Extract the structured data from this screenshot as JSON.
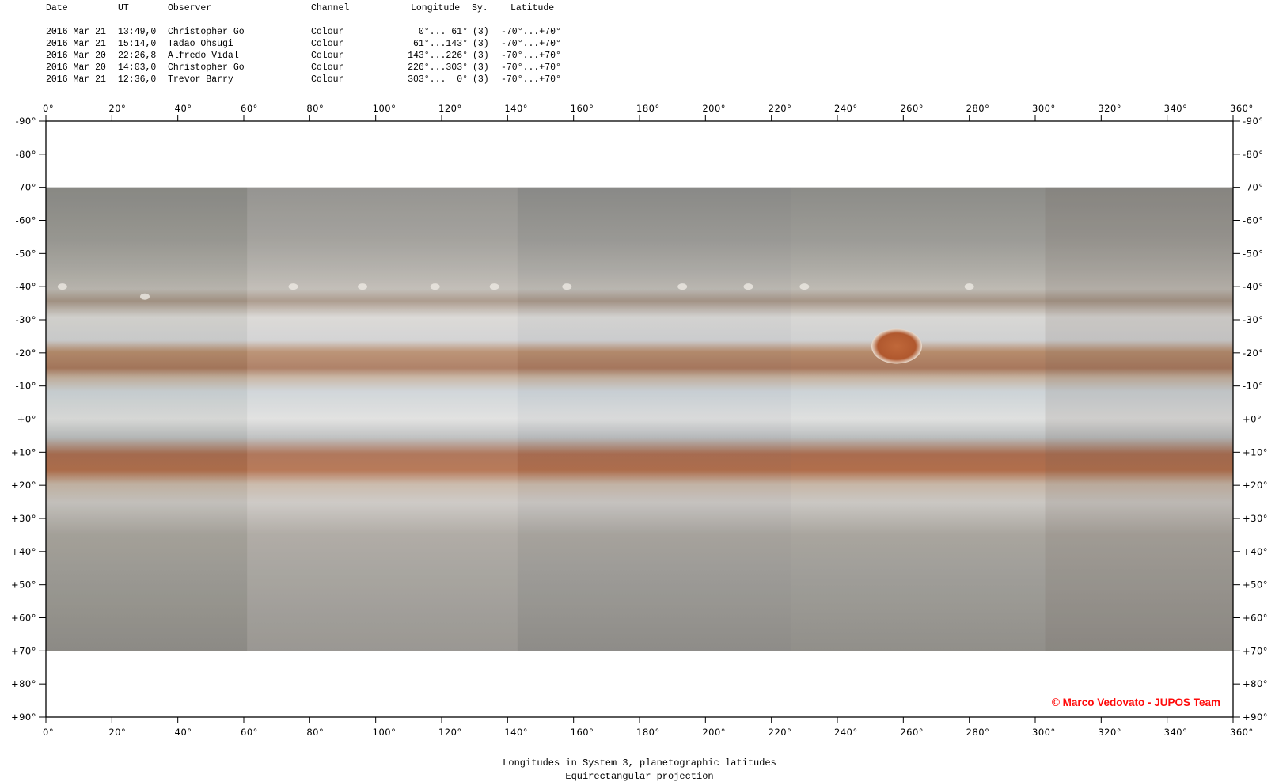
{
  "header": {
    "columns": {
      "date": "Date",
      "ut": "UT",
      "observer": "Observer",
      "channel": "Channel",
      "longitude": "Longitude",
      "system": "Sy.",
      "latitude": "Latitude"
    },
    "rows": [
      {
        "date": "2016 Mar 21",
        "ut": "13:49,0",
        "observer": "Christopher Go",
        "channel": "Colour",
        "longitude": "0°... 61°",
        "system": "(3)",
        "latitude": "-70°...+70°"
      },
      {
        "date": "2016 Mar 21",
        "ut": "15:14,0",
        "observer": "Tadao Ohsugi",
        "channel": "Colour",
        "longitude": "61°...143°",
        "system": "(3)",
        "latitude": "-70°...+70°"
      },
      {
        "date": "2016 Mar 20",
        "ut": "22:26,8",
        "observer": "Alfredo Vidal",
        "channel": "Colour",
        "longitude": "143°...226°",
        "system": "(3)",
        "latitude": "-70°...+70°"
      },
      {
        "date": "2016 Mar 20",
        "ut": "14:03,0",
        "observer": "Christopher Go",
        "channel": "Colour",
        "longitude": "226°...303°",
        "system": "(3)",
        "latitude": "-70°...+70°"
      },
      {
        "date": "2016 Mar 21",
        "ut": "12:36,0",
        "observer": "Trevor Barry",
        "channel": "Colour",
        "longitude": "303°...  0°",
        "system": "(3)",
        "latitude": "-70°...+70°"
      }
    ]
  },
  "map": {
    "longitude_range": [
      0,
      360
    ],
    "latitude_range": [
      -90,
      90
    ],
    "imaged_latitude_range": [
      -70,
      70
    ],
    "segments": [
      [
        0,
        61
      ],
      [
        61,
        143
      ],
      [
        143,
        226
      ],
      [
        226,
        303
      ],
      [
        303,
        360
      ]
    ],
    "great_red_spot": {
      "longitude": 258,
      "latitude": -22
    },
    "lon_ticks": [
      "0°",
      "20°",
      "40°",
      "60°",
      "80°",
      "100°",
      "120°",
      "140°",
      "160°",
      "180°",
      "200°",
      "220°",
      "240°",
      "260°",
      "280°",
      "300°",
      "320°",
      "340°",
      "360°"
    ],
    "lat_ticks": [
      "-90°",
      "-80°",
      "-70°",
      "-60°",
      "-50°",
      "-40°",
      "-30°",
      "-20°",
      "-10°",
      "+0°",
      "+10°",
      "+20°",
      "+30°",
      "+40°",
      "+50°",
      "+60°",
      "+70°",
      "+80°",
      "+90°"
    ]
  },
  "credit": "© Marco Vedovato - JUPOS Team",
  "caption": {
    "line1": "Longitudes in System 3, planetographic latitudes",
    "line2": "Equirectangular projection"
  },
  "colors": {
    "credit": "#ff0a0a",
    "seb": "#a9785a",
    "neb": "#a86a4c",
    "grs": "#b0582e"
  }
}
